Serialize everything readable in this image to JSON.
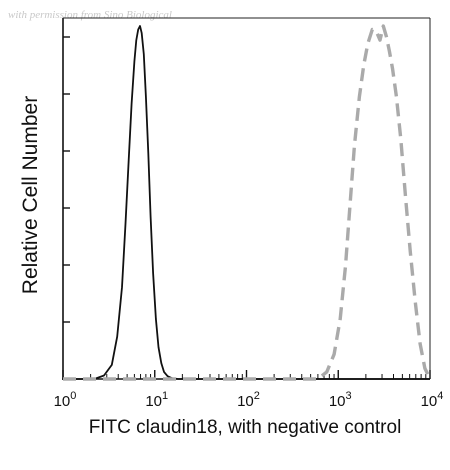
{
  "watermark": "with permission from Sino Biological",
  "chart_data": {
    "type": "line",
    "title": "",
    "xlabel": "FITC claudin18, with negative control",
    "ylabel": "Relative Cell Number",
    "xscale": "log",
    "xlim": [
      1,
      10000
    ],
    "ylim": [
      0,
      1
    ],
    "xtick_labels": [
      {
        "value": 1,
        "base": "10",
        "exp": "0"
      },
      {
        "value": 10,
        "base": "10",
        "exp": "1"
      },
      {
        "value": 100,
        "base": "10",
        "exp": "2"
      },
      {
        "value": 1000,
        "base": "10",
        "exp": "3"
      },
      {
        "value": 10000,
        "base": "10",
        "exp": "4"
      }
    ],
    "ytick_count": 7,
    "grid": false,
    "legend": "none",
    "series": [
      {
        "style": "solid",
        "color": "#111111",
        "x": [
          1.0,
          2.2,
          2.8,
          3.4,
          3.9,
          4.4,
          4.8,
          5.2,
          5.6,
          6.0,
          6.3,
          6.6,
          6.9,
          7.2,
          7.6,
          8.0,
          8.5,
          9.0,
          9.6,
          10.3,
          11.0,
          11.8,
          12.6,
          13.8,
          15.5,
          18.0,
          10000
        ],
        "y": [
          0.0,
          0.0,
          0.01,
          0.04,
          0.12,
          0.26,
          0.44,
          0.62,
          0.78,
          0.9,
          0.96,
          0.99,
          1.0,
          0.98,
          0.92,
          0.8,
          0.64,
          0.46,
          0.3,
          0.17,
          0.09,
          0.045,
          0.02,
          0.008,
          0.002,
          0.0,
          0.0
        ]
      },
      {
        "style": "dashed",
        "color": "#aaaaaa",
        "x": [
          1.0,
          600,
          750,
          900,
          1050,
          1200,
          1350,
          1500,
          1700,
          1900,
          2100,
          2350,
          2600,
          2850,
          3100,
          3350,
          3600,
          3900,
          4300,
          4800,
          5400,
          6100,
          6900,
          7800,
          8800,
          10000
        ],
        "y": [
          0.0,
          0.0,
          0.02,
          0.07,
          0.17,
          0.32,
          0.5,
          0.66,
          0.8,
          0.89,
          0.95,
          0.99,
          0.985,
          0.96,
          1.0,
          0.97,
          0.93,
          0.88,
          0.8,
          0.68,
          0.52,
          0.36,
          0.22,
          0.1,
          0.03,
          0.0
        ]
      }
    ]
  }
}
